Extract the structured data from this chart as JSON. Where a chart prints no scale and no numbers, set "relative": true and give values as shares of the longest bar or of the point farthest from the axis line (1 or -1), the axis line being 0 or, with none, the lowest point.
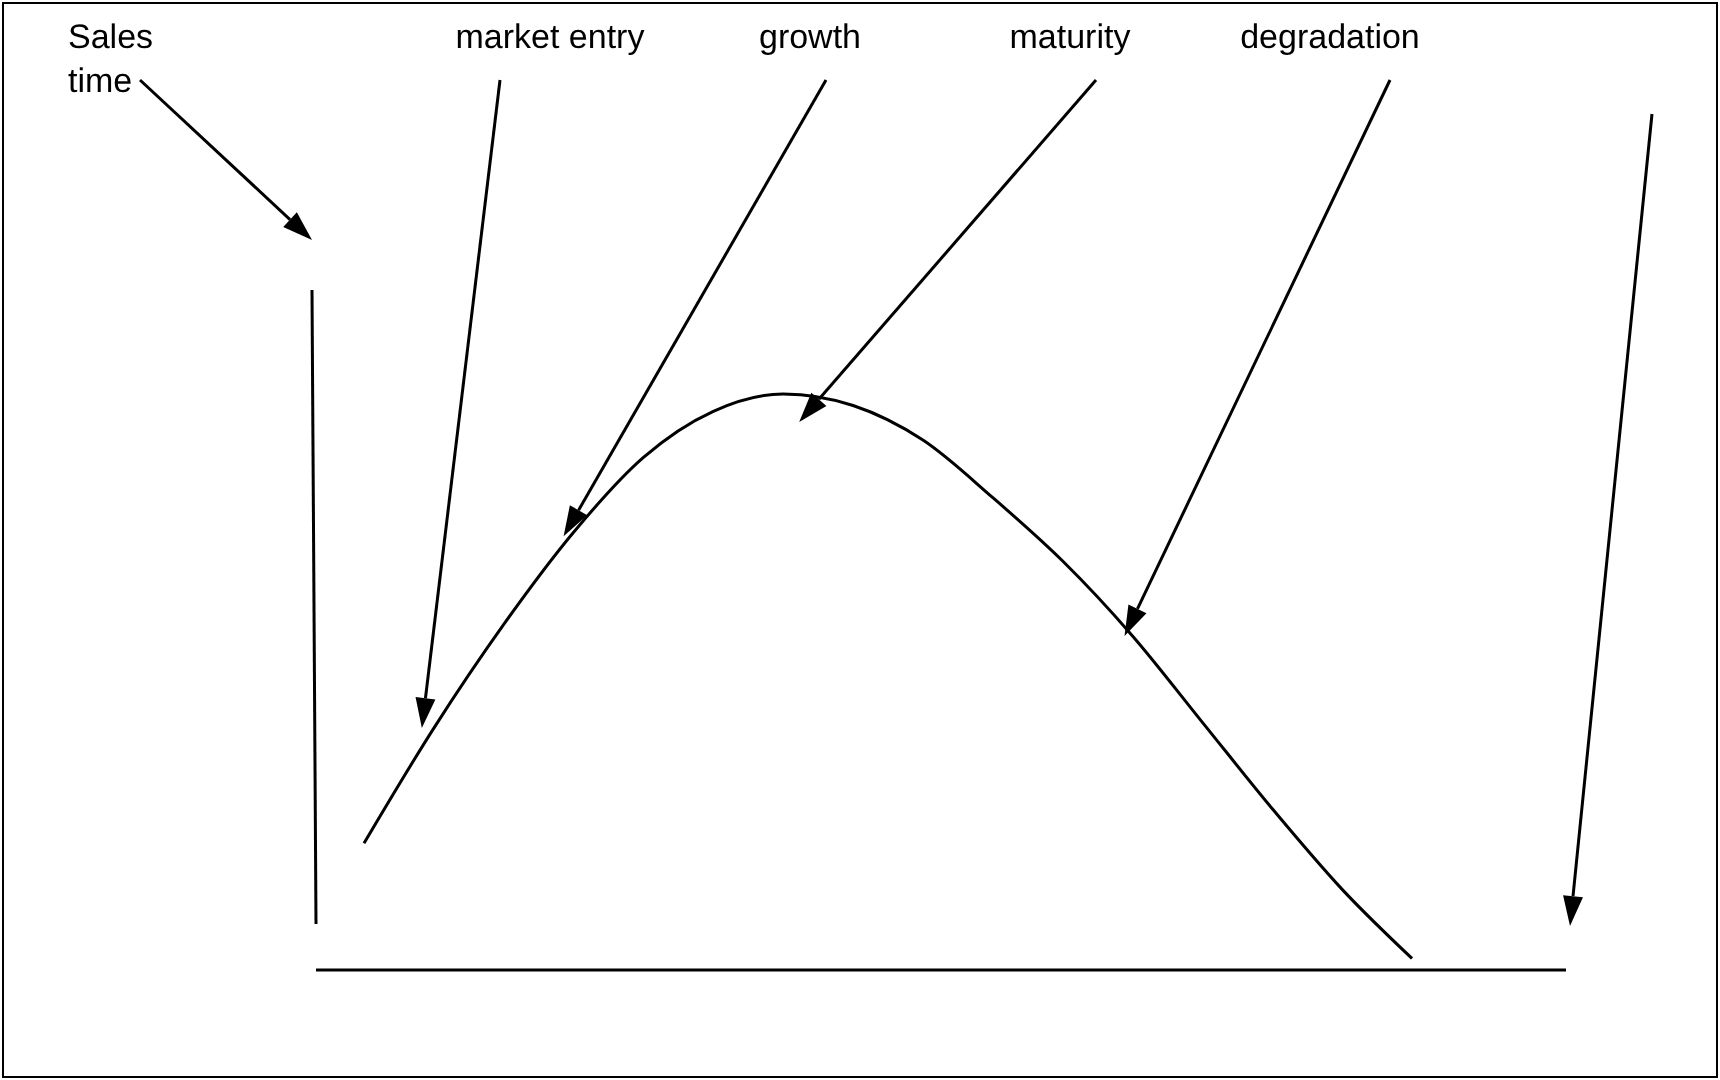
{
  "chart_data": {
    "type": "line",
    "relative": true,
    "categories": [
      null,
      null,
      null,
      null,
      null,
      null,
      null,
      null,
      null,
      null,
      null,
      null,
      null,
      null,
      null,
      null
    ],
    "series": [
      {
        "color": "#000000",
        "values": [
          0.22,
          0.42,
          0.6,
          0.76,
          0.89,
          0.97,
          1,
          0.98,
          0.92,
          0.82,
          0.71,
          0.58,
          0.43,
          0.28,
          0.14,
          0.02
        ]
      }
    ],
    "annotations": [
      "Sales",
      "time",
      "market entry",
      "growth",
      "maturity",
      "degradation"
    ]
  }
}
